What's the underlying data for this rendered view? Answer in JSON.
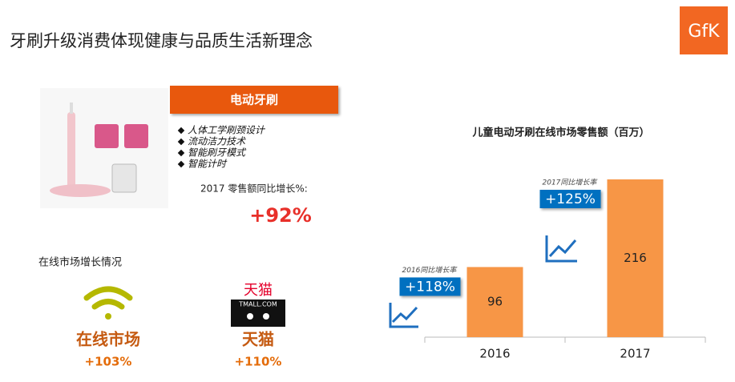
{
  "header": {
    "title": "牙刷升级消费体现健康与品质生活新理念",
    "logo": "GfK"
  },
  "product": {
    "banner": "电动牙刷",
    "features": [
      "人体工学刷颈设计",
      "流动洁力技术",
      "智能刷牙模式",
      "智能计时"
    ],
    "growth_label": "2017 零售额同比增长%:",
    "growth_value": "+92%"
  },
  "online": {
    "title": "在线市场增长情况",
    "tmall_logo": [
      "天猫",
      "TMALL.COM"
    ],
    "channels": [
      {
        "name": "在线市场",
        "growth": "+103%"
      },
      {
        "name": "天猫",
        "growth": "+110%"
      }
    ]
  },
  "chart_data": {
    "type": "bar",
    "title": "儿童电动牙刷在线市场零售额（百万）",
    "categories": [
      "2016",
      "2017"
    ],
    "values": [
      96,
      216
    ],
    "color": "#f79646",
    "annotations": [
      {
        "label": "2016同比增长率",
        "value": "+118%"
      },
      {
        "label": "2017同比增长率",
        "value": "+125%"
      }
    ]
  }
}
